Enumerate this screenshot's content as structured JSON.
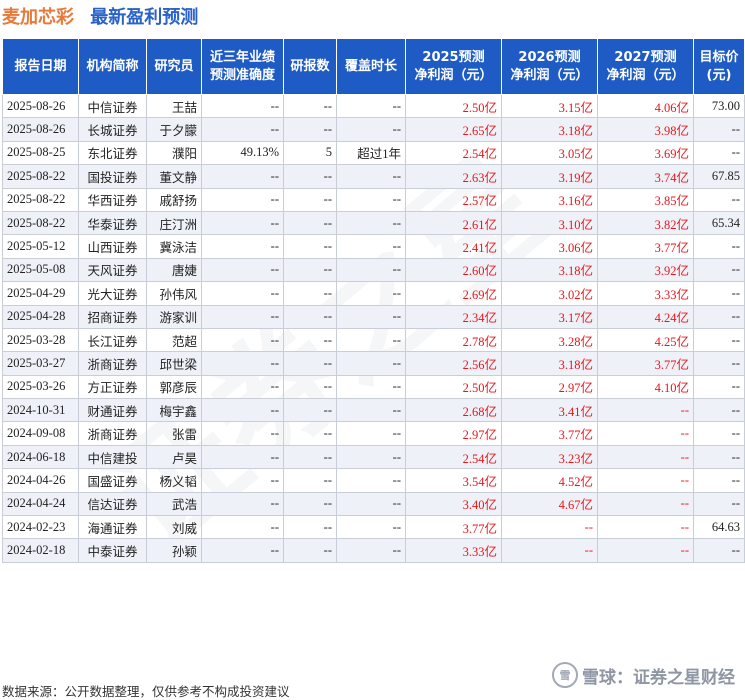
{
  "title": {
    "company": "麦加芯彩",
    "subtitle": "最新盈利预测"
  },
  "table": {
    "headers": [
      "报告日期",
      "机构简称",
      "研究员",
      [
        "近三年业绩",
        "预测准确度"
      ],
      "研报数",
      "覆盖时长",
      [
        "2025预测",
        "净利润（元）"
      ],
      [
        "2026预测",
        "净利润（元）"
      ],
      [
        "2027预测",
        "净利润（元）"
      ],
      [
        "目标价",
        "(元)"
      ]
    ],
    "rows": [
      [
        "2025-08-26",
        "中信证券",
        "王喆",
        "--",
        "--",
        "--",
        "2.50亿",
        "3.15亿",
        "4.06亿",
        "73.00"
      ],
      [
        "2025-08-26",
        "长城证券",
        "于夕朦",
        "--",
        "--",
        "--",
        "2.65亿",
        "3.18亿",
        "3.98亿",
        "--"
      ],
      [
        "2025-08-25",
        "东北证券",
        "濮阳",
        "49.13%",
        "5",
        "超过1年",
        "2.54亿",
        "3.05亿",
        "3.69亿",
        "--"
      ],
      [
        "2025-08-22",
        "国投证券",
        "董文静",
        "--",
        "--",
        "--",
        "2.63亿",
        "3.19亿",
        "3.74亿",
        "67.85"
      ],
      [
        "2025-08-22",
        "华西证券",
        "戚舒扬",
        "--",
        "--",
        "--",
        "2.57亿",
        "3.16亿",
        "3.85亿",
        "--"
      ],
      [
        "2025-08-22",
        "华泰证券",
        "庄汀洲",
        "--",
        "--",
        "--",
        "2.61亿",
        "3.10亿",
        "3.82亿",
        "65.34"
      ],
      [
        "2025-05-12",
        "山西证券",
        "冀泳洁",
        "--",
        "--",
        "--",
        "2.41亿",
        "3.06亿",
        "3.77亿",
        "--"
      ],
      [
        "2025-05-08",
        "天风证券",
        "唐婕",
        "--",
        "--",
        "--",
        "2.60亿",
        "3.18亿",
        "3.92亿",
        "--"
      ],
      [
        "2025-04-29",
        "光大证券",
        "孙伟风",
        "--",
        "--",
        "--",
        "2.69亿",
        "3.02亿",
        "3.33亿",
        "--"
      ],
      [
        "2025-04-28",
        "招商证券",
        "游家训",
        "--",
        "--",
        "--",
        "2.34亿",
        "3.17亿",
        "4.24亿",
        "--"
      ],
      [
        "2025-03-28",
        "长江证券",
        "范超",
        "--",
        "--",
        "--",
        "2.78亿",
        "3.28亿",
        "4.25亿",
        "--"
      ],
      [
        "2025-03-27",
        "浙商证券",
        "邱世梁",
        "--",
        "--",
        "--",
        "2.56亿",
        "3.18亿",
        "3.77亿",
        "--"
      ],
      [
        "2025-03-26",
        "方正证券",
        "郭彦辰",
        "--",
        "--",
        "--",
        "2.50亿",
        "2.97亿",
        "4.10亿",
        "--"
      ],
      [
        "2024-10-31",
        "财通证券",
        "梅宇鑫",
        "--",
        "--",
        "--",
        "2.68亿",
        "3.41亿",
        "--",
        "--"
      ],
      [
        "2024-09-08",
        "浙商证券",
        "张雷",
        "--",
        "--",
        "--",
        "2.97亿",
        "3.77亿",
        "--",
        "--"
      ],
      [
        "2024-06-18",
        "中信建投",
        "卢昊",
        "--",
        "--",
        "--",
        "2.54亿",
        "3.23亿",
        "--",
        "--"
      ],
      [
        "2024-04-26",
        "国盛证券",
        "杨义韬",
        "--",
        "--",
        "--",
        "3.54亿",
        "4.52亿",
        "--",
        "--"
      ],
      [
        "2024-04-24",
        "信达证券",
        "武浩",
        "--",
        "--",
        "--",
        "3.40亿",
        "4.67亿",
        "--",
        "--"
      ],
      [
        "2024-02-23",
        "海通证券",
        "刘威",
        "--",
        "--",
        "--",
        "3.77亿",
        "--",
        "--",
        "64.63"
      ],
      [
        "2024-02-18",
        "中泰证券",
        "孙颖",
        "--",
        "--",
        "--",
        "3.33亿",
        "--",
        "--",
        "--"
      ]
    ]
  },
  "footer": {
    "source": "数据来源：公开数据整理，仅供参考不构成投资建议"
  },
  "brand": {
    "logo_text": "雪",
    "text": "雪球：证券之星财经"
  },
  "watermark": {
    "text": "证券之星"
  },
  "colors": {
    "header_bg": "#1f5bc4",
    "forecast_text": "#e8161b",
    "company": "#e8793a",
    "subtitle": "#2a62c9"
  }
}
